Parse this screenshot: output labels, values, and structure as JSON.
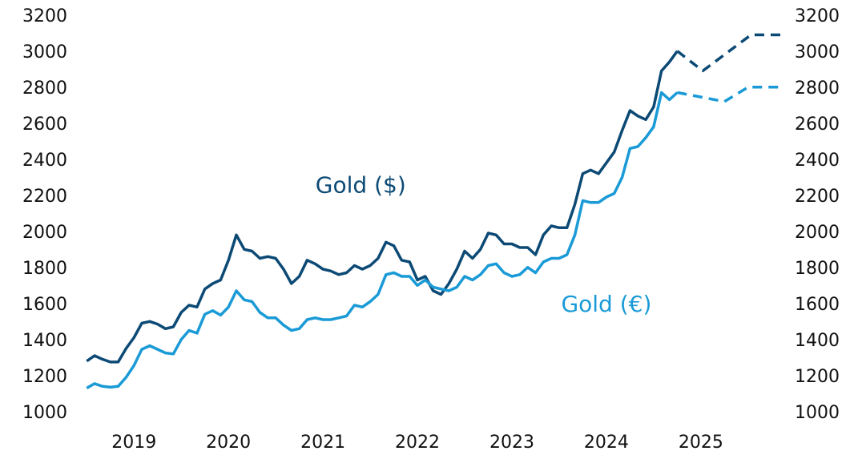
{
  "chart_data": {
    "type": "line",
    "xlim": [
      2018.93,
      2026.4
    ],
    "xticks": [
      {
        "value": 2019.5,
        "label": "2019"
      },
      {
        "value": 2020.5,
        "label": "2020"
      },
      {
        "value": 2021.5,
        "label": "2021"
      },
      {
        "value": 2022.5,
        "label": "2022"
      },
      {
        "value": 2023.5,
        "label": "2023"
      },
      {
        "value": 2024.5,
        "label": "2024"
      },
      {
        "value": 2025.5,
        "label": "2025"
      }
    ],
    "ylim": [
      1000,
      3200
    ],
    "yticks": [
      1000,
      1200,
      1400,
      1600,
      1800,
      2000,
      2200,
      2400,
      2600,
      2800,
      3000,
      3200
    ],
    "y2lim": [
      1000,
      3200
    ],
    "y2ticks": [
      1000,
      1200,
      1400,
      1600,
      1800,
      2000,
      2200,
      2400,
      2600,
      2800,
      3000,
      3200
    ],
    "annotations": [
      {
        "text": "Gold ($)",
        "color": "#0c4a75",
        "x": 2021.9,
        "y": 2260
      },
      {
        "text": "Gold (€)",
        "color": "#1a9ad6",
        "x": 2024.5,
        "y": 1600
      }
    ],
    "series": [
      {
        "name": "Gold ($)",
        "color": "#0c4a75",
        "style": "solid",
        "x": [
          2019.0,
          2019.083,
          2019.167,
          2019.25,
          2019.333,
          2019.417,
          2019.5,
          2019.583,
          2019.667,
          2019.75,
          2019.833,
          2019.917,
          2020.0,
          2020.083,
          2020.167,
          2020.25,
          2020.333,
          2020.417,
          2020.5,
          2020.583,
          2020.667,
          2020.75,
          2020.833,
          2020.917,
          2021.0,
          2021.083,
          2021.167,
          2021.25,
          2021.333,
          2021.417,
          2021.5,
          2021.583,
          2021.667,
          2021.75,
          2021.833,
          2021.917,
          2022.0,
          2022.083,
          2022.167,
          2022.25,
          2022.333,
          2022.417,
          2022.5,
          2022.583,
          2022.667,
          2022.75,
          2022.833,
          2022.917,
          2023.0,
          2023.083,
          2023.167,
          2023.25,
          2023.333,
          2023.417,
          2023.5,
          2023.583,
          2023.667,
          2023.75,
          2023.833,
          2023.917,
          2024.0,
          2024.083,
          2024.167,
          2024.25,
          2024.333,
          2024.417,
          2024.5,
          2024.583,
          2024.667,
          2024.75,
          2024.833,
          2024.917,
          2025.0,
          2025.083,
          2025.167,
          2025.25
        ],
        "values": [
          1290,
          1320,
          1300,
          1285,
          1285,
          1360,
          1420,
          1500,
          1510,
          1495,
          1470,
          1480,
          1560,
          1600,
          1590,
          1690,
          1720,
          1740,
          1850,
          1990,
          1910,
          1900,
          1860,
          1870,
          1860,
          1800,
          1720,
          1760,
          1850,
          1830,
          1800,
          1790,
          1770,
          1780,
          1820,
          1800,
          1820,
          1860,
          1950,
          1930,
          1850,
          1840,
          1740,
          1760,
          1680,
          1660,
          1720,
          1800,
          1900,
          1860,
          1910,
          2000,
          1990,
          1940,
          1940,
          1920,
          1920,
          1880,
          1990,
          2040,
          2030,
          2030,
          2160,
          2330,
          2350,
          2330,
          2390,
          2450,
          2570,
          2680,
          2650,
          2630,
          2700,
          2900,
          2950,
          3010
        ]
      },
      {
        "name": "Gold (€)",
        "color": "#1a9ad6",
        "style": "solid",
        "x": [
          2019.0,
          2019.083,
          2019.167,
          2019.25,
          2019.333,
          2019.417,
          2019.5,
          2019.583,
          2019.667,
          2019.75,
          2019.833,
          2019.917,
          2020.0,
          2020.083,
          2020.167,
          2020.25,
          2020.333,
          2020.417,
          2020.5,
          2020.583,
          2020.667,
          2020.75,
          2020.833,
          2020.917,
          2021.0,
          2021.083,
          2021.167,
          2021.25,
          2021.333,
          2021.417,
          2021.5,
          2021.583,
          2021.667,
          2021.75,
          2021.833,
          2021.917,
          2022.0,
          2022.083,
          2022.167,
          2022.25,
          2022.333,
          2022.417,
          2022.5,
          2022.583,
          2022.667,
          2022.75,
          2022.833,
          2022.917,
          2023.0,
          2023.083,
          2023.167,
          2023.25,
          2023.333,
          2023.417,
          2023.5,
          2023.583,
          2023.667,
          2023.75,
          2023.833,
          2023.917,
          2024.0,
          2024.083,
          2024.167,
          2024.25,
          2024.333,
          2024.417,
          2024.5,
          2024.583,
          2024.667,
          2024.75,
          2024.833,
          2024.917,
          2025.0,
          2025.083,
          2025.167,
          2025.25
        ],
        "values": [
          1140,
          1165,
          1150,
          1145,
          1150,
          1200,
          1265,
          1355,
          1375,
          1355,
          1335,
          1330,
          1410,
          1460,
          1445,
          1550,
          1570,
          1545,
          1590,
          1680,
          1630,
          1620,
          1560,
          1530,
          1530,
          1490,
          1460,
          1470,
          1520,
          1530,
          1520,
          1520,
          1530,
          1540,
          1600,
          1590,
          1620,
          1660,
          1770,
          1780,
          1760,
          1760,
          1710,
          1740,
          1700,
          1690,
          1680,
          1700,
          1760,
          1740,
          1770,
          1820,
          1830,
          1780,
          1760,
          1770,
          1810,
          1780,
          1840,
          1860,
          1860,
          1880,
          1990,
          2180,
          2170,
          2170,
          2200,
          2220,
          2310,
          2470,
          2480,
          2530,
          2590,
          2780,
          2740,
          2780
        ]
      },
      {
        "color": "#0c4a75",
        "style": "dashed",
        "x": [
          2025.25,
          2025.52,
          2026.03,
          2026.35
        ],
        "values": [
          3010,
          2900,
          3100,
          3100
        ]
      },
      {
        "color": "#1a9ad6",
        "style": "dashed",
        "x": [
          2025.25,
          2025.75,
          2026.0,
          2026.35
        ],
        "values": [
          2780,
          2730,
          2810,
          2810
        ]
      }
    ]
  }
}
